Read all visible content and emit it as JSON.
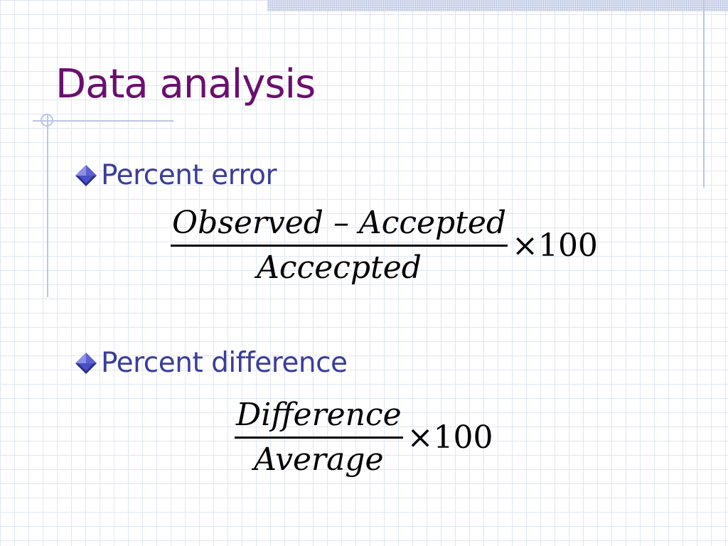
{
  "slide": {
    "title": "Data analysis",
    "colors": {
      "title": "#6a0f6f",
      "bullet_text": "#3b3d9a",
      "grid": "#e2e6f1",
      "accent_rule": "#b9c6e6"
    },
    "bullets": [
      {
        "label": "Percent error",
        "icon": "diamond-bullet-icon",
        "formula": {
          "numerator": "Observed – Accepted",
          "denominator": "Accecpted",
          "multiplier": "×100"
        }
      },
      {
        "label": "Percent difference",
        "icon": "diamond-bullet-icon",
        "formula": {
          "numerator": "Difference",
          "denominator": "Average",
          "multiplier": "×100"
        }
      }
    ]
  }
}
